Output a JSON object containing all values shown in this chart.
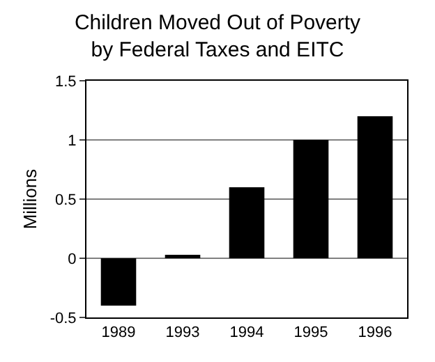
{
  "chart_data": {
    "type": "bar",
    "title": "Children Moved Out of Poverty\nby Federal Taxes and EITC",
    "ylabel": "Millions",
    "categories": [
      "1989",
      "1993",
      "1994",
      "1995",
      "1996"
    ],
    "values": [
      -0.4,
      0.03,
      0.6,
      1.0,
      1.2
    ],
    "color": "#000000",
    "ylim": [
      -0.5,
      1.5
    ],
    "yticks": [
      -0.5,
      0,
      0.5,
      1,
      1.5
    ],
    "grid": "y"
  }
}
